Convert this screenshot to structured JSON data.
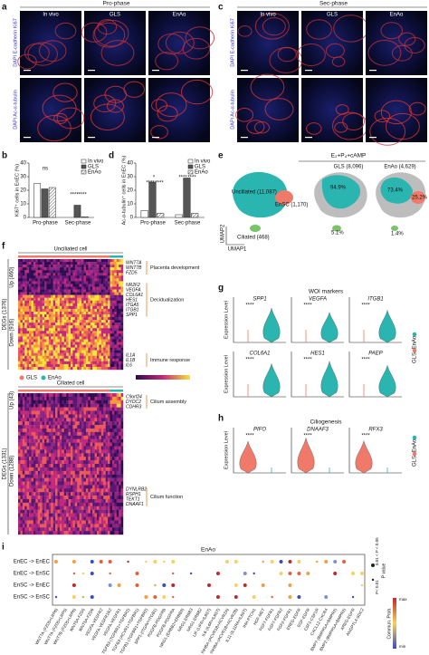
{
  "panel_labels": [
    "a",
    "b",
    "c",
    "d",
    "e",
    "f",
    "g",
    "h",
    "i"
  ],
  "panel_a": {
    "phase": "Pro-phase",
    "columns": [
      "In vivo",
      "GLS",
      "EnAo"
    ],
    "rows": [
      "DAPI E-cadherin Ki67",
      "DAPI Ac-α-tubulin"
    ]
  },
  "panel_c": {
    "phase": "Sec-phase",
    "columns": [
      "In vivo",
      "GLS",
      "EnAo"
    ],
    "rows": [
      "DAPI E-cadherin Ki67",
      "DAPI Ac-α-tubulin"
    ]
  },
  "chart_data": [
    {
      "type": "bar",
      "ylabel": "Ki67⁺ cells in EnEC (%)",
      "categories": [
        "Pro-phase",
        "Sec-phase"
      ],
      "series": [
        {
          "name": "In vivo",
          "color": "#ffffff",
          "values": [
            25,
            0
          ]
        },
        {
          "name": "GLS",
          "color": "#555555",
          "values": [
            21,
            9
          ]
        },
        {
          "name": "EnAo",
          "color": "#bdbdbd",
          "values": [
            22,
            0.5
          ]
        }
      ],
      "ylim": [
        0,
        40
      ],
      "yticks": [
        0,
        10,
        20,
        30,
        40
      ],
      "annotations": [
        "ns",
        "****",
        "****"
      ]
    },
    {
      "type": "bar",
      "ylabel": "Ac-α-tubulin⁺ cells in EnEC (%)",
      "categories": [
        "Pro-phase",
        "Sec-phase"
      ],
      "series": [
        {
          "name": "In vivo",
          "color": "#ffffff",
          "values": [
            5,
            2
          ]
        },
        {
          "name": "GLS",
          "color": "#555555",
          "values": [
            26,
            29
          ]
        },
        {
          "name": "EnAo",
          "color": "#bdbdbd",
          "values": [
            3,
            3
          ]
        }
      ],
      "ylim": [
        0,
        40
      ],
      "yticks": [
        0,
        10,
        20,
        30,
        40
      ],
      "annotations": [
        "*",
        "****",
        "****",
        "****",
        "****"
      ]
    }
  ],
  "panel_e": {
    "title": "E₂+P₄+cAMP",
    "groups": [
      "GLS (8,096)",
      "EnAo (4,629)"
    ],
    "clusters": [
      "Unciliated (11,087)",
      "EnSC (1,170)",
      "Ciliated (468)"
    ],
    "percents": [
      "94.9%",
      "5.1%",
      "73.4%",
      "25.2%",
      "1.4%"
    ],
    "axes": [
      "UMAP2",
      "UMAP1"
    ]
  },
  "panel_f": {
    "blocks": [
      {
        "title": "Unciliated cell",
        "total": "DEGs (1376)",
        "parts": [
          "Up (460)",
          "Down (916)"
        ],
        "genes": [
          {
            "names": [
              "WNT7A",
              "WNT7B",
              "FZD5"
            ],
            "term": "Placenta development"
          },
          {
            "names": [
              "NR2F2",
              "VEGFA",
              "COL6A1",
              "HES1",
              "ITGA5",
              "ITGB1",
              "SPP1"
            ],
            "term": "Decidualization"
          },
          {
            "names": [
              "IL1A",
              "IL1B",
              "IL6"
            ],
            "term": "Immune response"
          }
        ]
      },
      {
        "title": "Ciliated cell",
        "total": "DEGs (1331)",
        "parts": [
          "Up (43)",
          "Down (1288)"
        ],
        "genes": [
          {
            "names": [
              "C9orf24",
              "DYDC2",
              "CDHR3"
            ],
            "term": "Cilium assembly"
          },
          {
            "names": [
              "DYNLRB2",
              "RSPH1",
              "TEKT1",
              "DNAAF1"
            ],
            "term": "Cilium function"
          }
        ]
      }
    ],
    "legend": [
      "GLS",
      "EnAo"
    ]
  },
  "panel_g": {
    "title": "WOI markers",
    "ylabel": "Expression Level",
    "genes": [
      "SPP1",
      "VEGFA",
      "ITGB1",
      "COL6A1",
      "HES1",
      "PAEP"
    ],
    "significance": "****",
    "legend": [
      "EnAo",
      "GLS"
    ]
  },
  "panel_h": {
    "title": "Ciliogenesis",
    "ylabel": "Expression Level",
    "genes": [
      "PIFO",
      "DNAAF3",
      "RFX3"
    ],
    "significance": "****",
    "legend": [
      "EnAo",
      "GLS"
    ]
  },
  "panel_i": {
    "title": "EnAo",
    "rows": [
      "EnEC -> EnEC",
      "EnEC -> EnSC",
      "EnSC -> EnEC",
      "EnSC -> EnSC"
    ],
    "pairs": [
      "WNT7A-(FZD5+LRP6)",
      "WNT7A-(FZD5+LRP5)",
      "WNT7B-(FZD5+LRP6)",
      "WNT5A-FZD5",
      "WNT5A-FZD6",
      "VEGFA-VEGFR2",
      "VEGFA-VEGFR1R2",
      "VEGFA-VEGFR1",
      "TGFB3-(TGFBR1+TGFBR2)",
      "TGFB3-(ACVR1+TGFBR1)",
      "TGFB1-(TGFBR1+TGFBR2)",
      "SPP1-(ITGAV+ITGB1)",
      "PDGFB-PDGFRB",
      "PDGFB-PDGFRA",
      "NRG1-(ERBB2+ERBB3)",
      "NRG1-ERBB3",
      "NRG1-ERBB2",
      "LIF-(LIFR+IL6ST)",
      "IL6-(IL6R+IL6ST)",
      "INHBA-(ACVR1B+ACVR2A)",
      "INHBA-(ACVR1B+ACVR2B)",
      "IL11-(IL11RA+IL6ST)",
      "IHH-PTCH1",
      "HGF-MET",
      "FGF7-FGFR1",
      "FGF7-FGFR2",
      "FGF2-FGFR1",
      "EREG-EGFR",
      "EGF-EGFR",
      "CSF1-CSF1R",
      "CXCL12-CXCR4",
      "BMP7-(BMPR1A+BMPR2)",
      "BMP2-(BMPR1A+BMPR2)",
      "AREG-EGFR",
      "ANGPTL4-SDC2"
    ],
    "pvalue_title": "P value",
    "pvalue_levels": [
      "0.01 < P < 0.05",
      "P< 0.01"
    ],
    "prob_title": "Commun. Prob.",
    "prob_ends": [
      "max",
      "min"
    ]
  }
}
